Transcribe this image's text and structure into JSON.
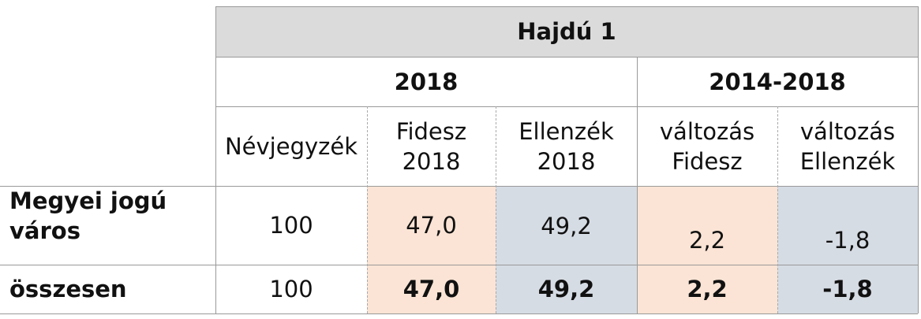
{
  "table": {
    "title": "Hajdú 1",
    "group_2018": "2018",
    "group_change": "2014-2018",
    "columns": {
      "nevjegyzek": "Névjegyzék",
      "fidesz_line1": "Fidesz",
      "fidesz_line2": "2018",
      "ellenzek_line1": "Ellenzék",
      "ellenzek_line2": "2018",
      "valt_fidesz_line1": "változás",
      "valt_fidesz_line2": "Fidesz",
      "valt_ellenzek_line1": "változás",
      "valt_ellenzek_line2": "Ellenzék"
    },
    "rows": [
      {
        "label_line1": "Megyei jogú",
        "label_line2": "város",
        "nevjegyzek": "100",
        "fidesz": "47,0",
        "ellenzek": "49,2",
        "valt_fidesz": "2,2",
        "valt_ellenzek": "-1,8"
      },
      {
        "label": "összesen",
        "nevjegyzek": "100",
        "fidesz": "47,0",
        "ellenzek": "49,2",
        "valt_fidesz": "2,2",
        "valt_ellenzek": "-1,8"
      }
    ],
    "colors": {
      "header_gray": "#dbdbdb",
      "fidesz_fill": "#fbe4d5",
      "ellenzek_fill": "#d6dce4",
      "grid": "#999999"
    }
  }
}
